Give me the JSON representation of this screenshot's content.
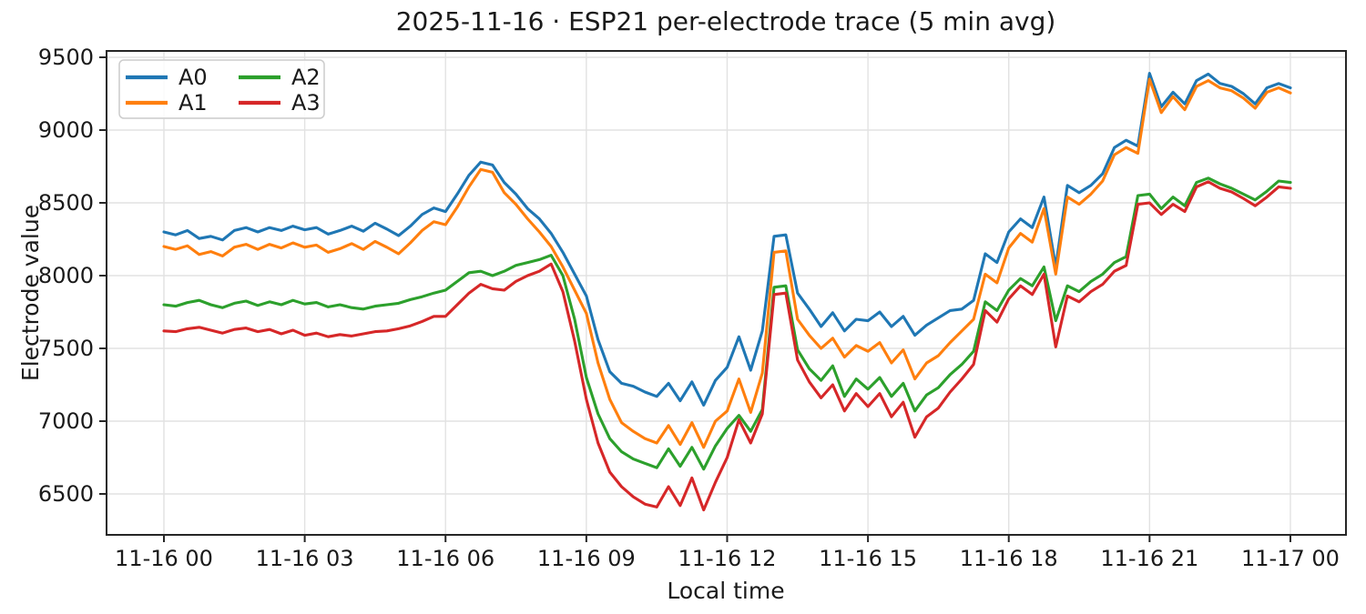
{
  "page": {
    "title": "2025-11-16 · ESP21 per-electrode trace (5 min avg)"
  },
  "chart_data": {
    "type": "line",
    "title": "2025-11-16 · ESP21 per-electrode trace (5 min avg)",
    "xlabel": "Local time",
    "ylabel": "Electrode value",
    "grid": true,
    "legend_position": "upper left",
    "legend_columns": 2,
    "x_start": "2025-11-16 00:00",
    "x_step_minutes": 15,
    "x_tick_hours": [
      0,
      3,
      6,
      9,
      12,
      15,
      18,
      21,
      24
    ],
    "x_tick_labels": [
      "11-16 00",
      "11-16 03",
      "11-16 06",
      "11-16 09",
      "11-16 12",
      "11-16 15",
      "11-16 18",
      "11-16 21",
      "11-17 00"
    ],
    "y_ticks": [
      6500,
      7000,
      7500,
      8000,
      8500,
      9000,
      9500
    ],
    "ylim": [
      6240,
      9540
    ],
    "xlim_hours": [
      -1.22,
      25.2
    ],
    "series": [
      {
        "name": "A0",
        "color": "#1f77b4",
        "values": [
          8300,
          8280,
          8310,
          8255,
          8270,
          8245,
          8310,
          8330,
          8300,
          8330,
          8310,
          8340,
          8315,
          8330,
          8285,
          8310,
          8340,
          8305,
          8360,
          8320,
          8275,
          8340,
          8420,
          8465,
          8440,
          8560,
          8690,
          8780,
          8760,
          8640,
          8560,
          8460,
          8390,
          8290,
          8160,
          8010,
          7860,
          7560,
          7340,
          7260,
          7240,
          7200,
          7170,
          7260,
          7140,
          7270,
          7110,
          7280,
          7370,
          7580,
          7350,
          7620,
          8270,
          8280,
          7880,
          7770,
          7650,
          7745,
          7620,
          7700,
          7690,
          7750,
          7650,
          7720,
          7590,
          7660,
          7710,
          7760,
          7770,
          7830,
          8150,
          8090,
          8300,
          8390,
          8330,
          8540,
          8060,
          8620,
          8570,
          8620,
          8700,
          8880,
          8930,
          8890,
          9390,
          9160,
          9260,
          9180,
          9340,
          9385,
          9320,
          9300,
          9250,
          9180,
          9290,
          9320,
          9290
        ]
      },
      {
        "name": "A1",
        "color": "#ff7f0e",
        "values": [
          8200,
          8180,
          8205,
          8145,
          8165,
          8135,
          8195,
          8215,
          8180,
          8215,
          8190,
          8225,
          8195,
          8210,
          8160,
          8185,
          8220,
          8180,
          8235,
          8195,
          8150,
          8225,
          8310,
          8370,
          8350,
          8470,
          8610,
          8730,
          8710,
          8570,
          8490,
          8390,
          8300,
          8200,
          8060,
          7900,
          7740,
          7400,
          7150,
          6990,
          6930,
          6880,
          6850,
          6970,
          6840,
          6990,
          6820,
          7000,
          7070,
          7290,
          7060,
          7330,
          8160,
          8170,
          7700,
          7590,
          7500,
          7570,
          7440,
          7520,
          7480,
          7540,
          7400,
          7490,
          7290,
          7400,
          7450,
          7540,
          7620,
          7700,
          8010,
          7950,
          8190,
          8290,
          8230,
          8460,
          8010,
          8540,
          8490,
          8560,
          8650,
          8830,
          8880,
          8840,
          9350,
          9120,
          9230,
          9140,
          9300,
          9340,
          9290,
          9270,
          9220,
          9150,
          9260,
          9290,
          9255
        ]
      },
      {
        "name": "A2",
        "color": "#2ca02c",
        "values": [
          7800,
          7790,
          7815,
          7830,
          7800,
          7780,
          7810,
          7825,
          7795,
          7820,
          7800,
          7830,
          7805,
          7815,
          7785,
          7800,
          7780,
          7770,
          7790,
          7800,
          7810,
          7835,
          7855,
          7880,
          7900,
          7960,
          8020,
          8030,
          8000,
          8030,
          8070,
          8090,
          8110,
          8140,
          8000,
          7700,
          7300,
          7050,
          6880,
          6790,
          6740,
          6710,
          6680,
          6810,
          6690,
          6820,
          6670,
          6830,
          6950,
          7040,
          6930,
          7080,
          7920,
          7930,
          7490,
          7360,
          7280,
          7380,
          7170,
          7290,
          7220,
          7300,
          7170,
          7260,
          7070,
          7180,
          7230,
          7320,
          7390,
          7480,
          7820,
          7760,
          7900,
          7980,
          7930,
          8060,
          7690,
          7930,
          7890,
          7960,
          8010,
          8090,
          8130,
          8550,
          8560,
          8460,
          8540,
          8480,
          8640,
          8670,
          8630,
          8600,
          8560,
          8520,
          8580,
          8650,
          8640
        ]
      },
      {
        "name": "A3",
        "color": "#d62728",
        "values": [
          7620,
          7615,
          7635,
          7645,
          7625,
          7605,
          7630,
          7640,
          7615,
          7630,
          7600,
          7625,
          7590,
          7605,
          7580,
          7595,
          7585,
          7600,
          7615,
          7620,
          7635,
          7655,
          7685,
          7720,
          7720,
          7800,
          7880,
          7940,
          7910,
          7900,
          7960,
          8000,
          8030,
          8080,
          7890,
          7550,
          7150,
          6850,
          6650,
          6550,
          6480,
          6430,
          6410,
          6550,
          6420,
          6610,
          6390,
          6580,
          6750,
          7010,
          6850,
          7050,
          7870,
          7880,
          7420,
          7270,
          7160,
          7250,
          7070,
          7190,
          7100,
          7190,
          7030,
          7130,
          6890,
          7030,
          7090,
          7200,
          7290,
          7390,
          7760,
          7680,
          7840,
          7930,
          7870,
          8010,
          7510,
          7860,
          7820,
          7890,
          7940,
          8030,
          8070,
          8490,
          8500,
          8420,
          8490,
          8440,
          8610,
          8645,
          8600,
          8575,
          8530,
          8480,
          8540,
          8610,
          8600
        ]
      }
    ]
  }
}
